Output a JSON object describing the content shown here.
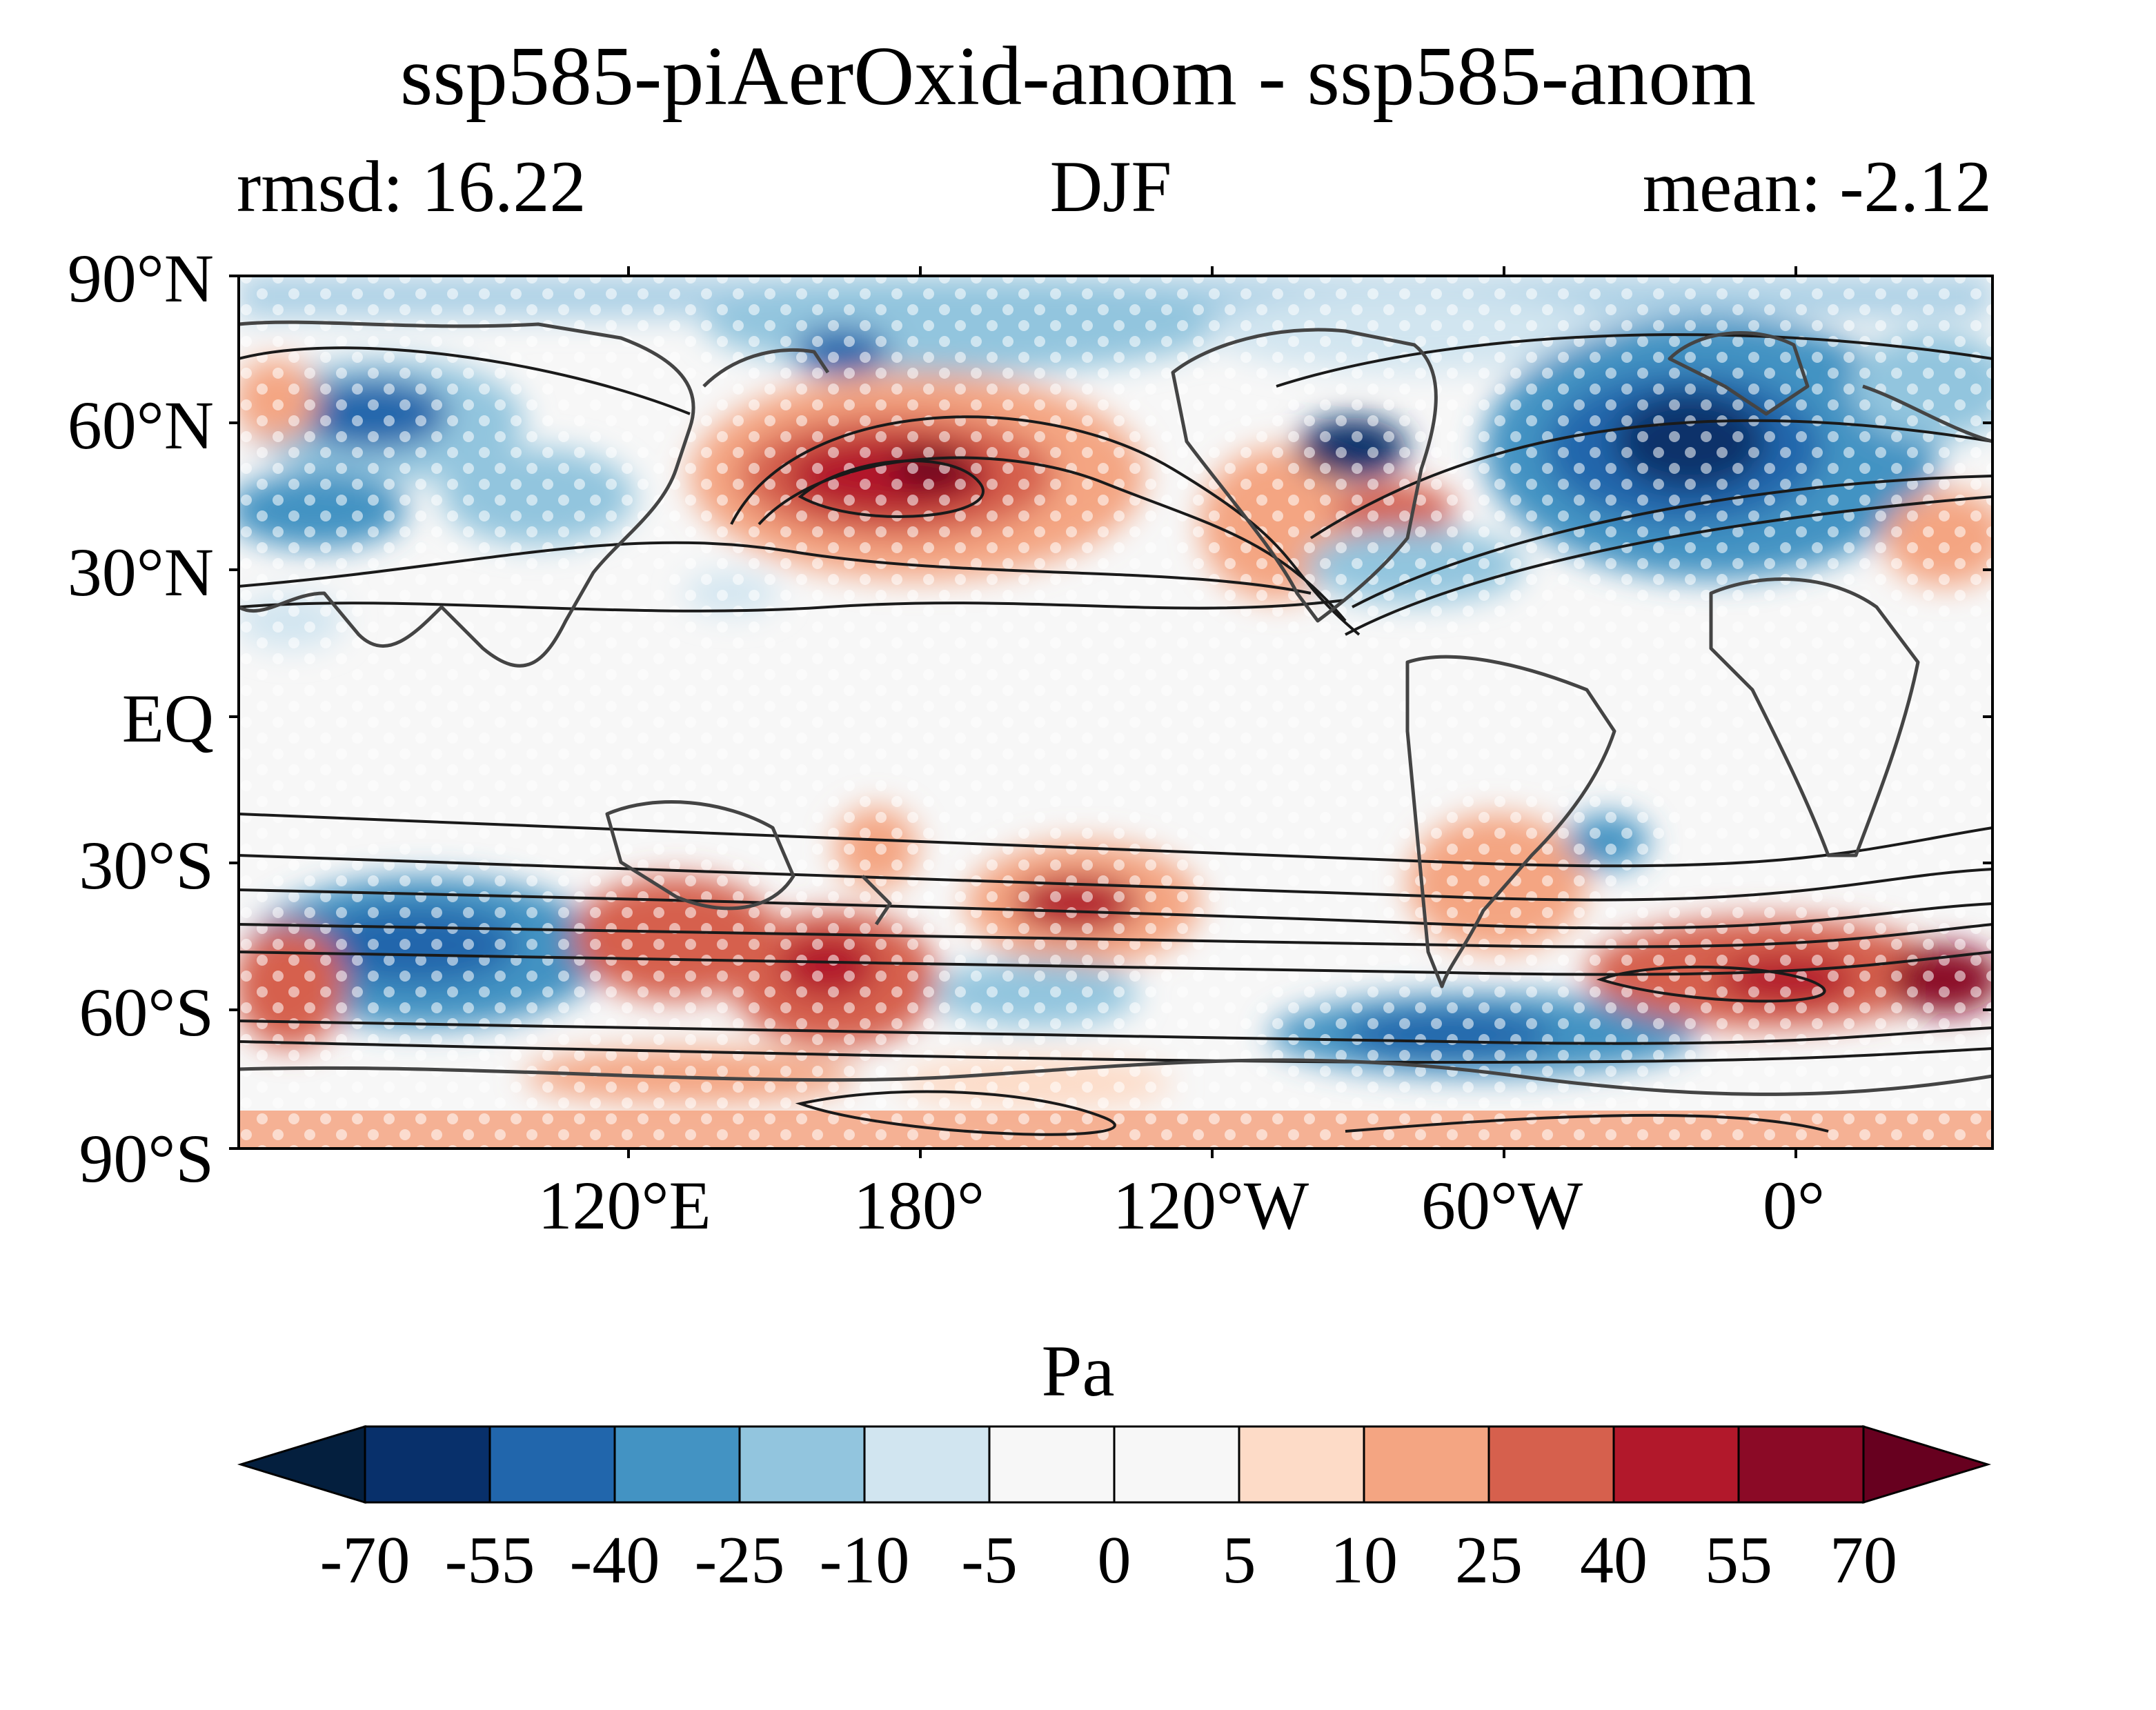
{
  "figure": {
    "title": "ssp585-piAerOxid-anom - ssp585-anom",
    "left_text": "rmsd: 16.22",
    "center_text": "DJF",
    "right_text": "mean: -2.12"
  },
  "map": {
    "projection": "equirectangular, centered 150°E",
    "lat_labels": [
      "90°N",
      "60°N",
      "30°N",
      "EQ",
      "30°S",
      "60°S",
      "90°S"
    ],
    "lon_labels": [
      "120°E",
      "180°",
      "120°W",
      "60°W",
      "0°"
    ],
    "field": "shaded anomaly with black climatology contours and white stippling; coastlines in dark gray"
  },
  "colorbar": {
    "title": "Pa",
    "ticks": [
      "-70",
      "-55",
      "-40",
      "-25",
      "-10",
      "-5",
      "0",
      "5",
      "10",
      "25",
      "40",
      "55",
      "70"
    ],
    "colors": [
      "#08306b",
      "#2166ac",
      "#4393c3",
      "#92c5de",
      "#d1e5f0",
      "#f7f7f7",
      "#f7f7f7",
      "#fddbc7",
      "#f4a582",
      "#d6604d",
      "#b2182b",
      "#8b0a26"
    ],
    "under_color": "#041f3e",
    "over_color": "#67001f"
  }
}
